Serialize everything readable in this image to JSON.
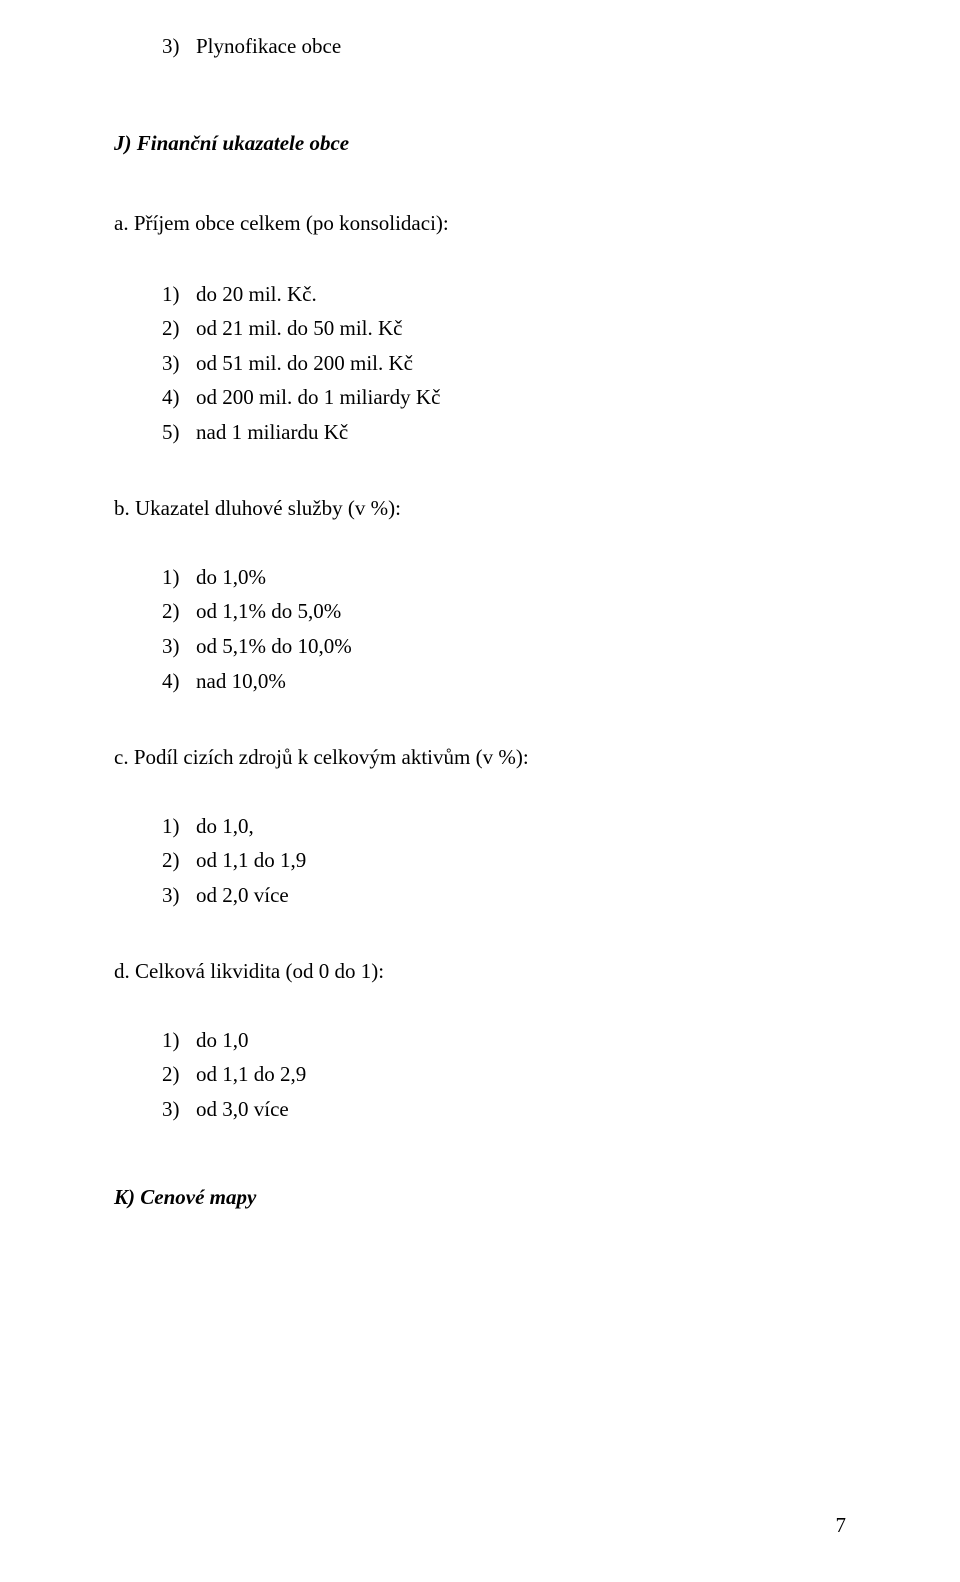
{
  "top_item": {
    "num": "3)",
    "text": "Plynofikace obce"
  },
  "section_j": {
    "heading": "J) Finanční ukazatele obce",
    "a": {
      "title": "a. Příjem obce celkem (po konsolidaci):",
      "items": [
        {
          "num": "1)",
          "text": "do 20 mil. Kč."
        },
        {
          "num": "2)",
          "text": "od 21 mil. do 50 mil. Kč"
        },
        {
          "num": "3)",
          "text": "od 51 mil. do 200 mil. Kč"
        },
        {
          "num": "4)",
          "text": "od 200 mil. do 1 miliardy Kč"
        },
        {
          "num": "5)",
          "text": "nad 1 miliardu Kč"
        }
      ]
    },
    "b": {
      "title": "b. Ukazatel dluhové služby (v %):",
      "items": [
        {
          "num": "1)",
          "text": "do 1,0%"
        },
        {
          "num": "2)",
          "text": "od 1,1% do 5,0%"
        },
        {
          "num": "3)",
          "text": "od 5,1% do 10,0%"
        },
        {
          "num": "4)",
          "text": "nad 10,0%"
        }
      ]
    },
    "c": {
      "title": "c. Podíl cizích zdrojů k celkovým aktivům (v %):",
      "items": [
        {
          "num": "1)",
          "text": "do 1,0,"
        },
        {
          "num": "2)",
          "text": "od 1,1 do 1,9"
        },
        {
          "num": "3)",
          "text": "od 2,0 více"
        }
      ]
    },
    "d": {
      "title": "d. Celková likvidita (od 0 do 1):",
      "items": [
        {
          "num": "1)",
          "text": "do 1,0"
        },
        {
          "num": "2)",
          "text": "od 1,1 do 2,9"
        },
        {
          "num": "3)",
          "text": "od 3,0 více"
        }
      ]
    }
  },
  "section_k": {
    "heading": "K) Cenové mapy"
  },
  "page_number": "7"
}
